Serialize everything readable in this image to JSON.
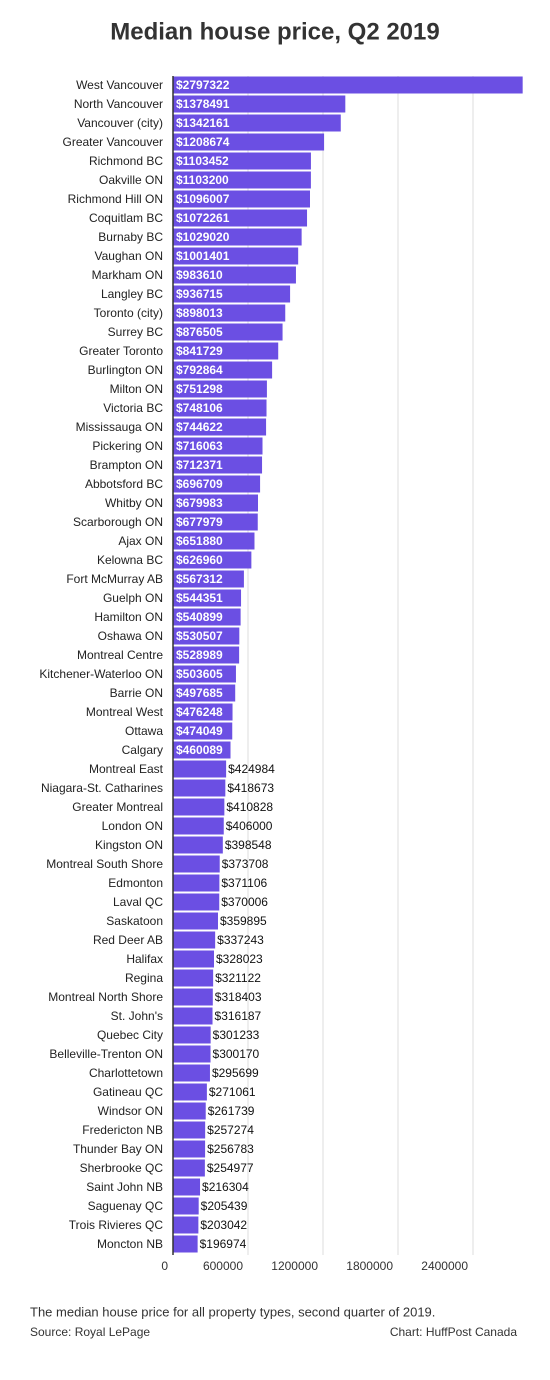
{
  "chart_data": {
    "type": "bar",
    "orientation": "horizontal",
    "title": "Median house price, Q2 2019",
    "categories": [
      "West Vancouver",
      "North Vancouver",
      "Vancouver (city)",
      "Greater Vancouver",
      "Richmond BC",
      "Oakville ON",
      "Richmond Hill ON",
      "Coquitlam BC",
      "Burnaby BC",
      "Vaughan ON",
      "Markham ON",
      "Langley BC",
      "Toronto (city)",
      "Surrey BC",
      "Greater Toronto",
      "Burlington ON",
      "Milton ON",
      "Victoria BC",
      "Mississauga ON",
      "Pickering ON",
      "Brampton ON",
      "Abbotsford BC",
      "Whitby ON",
      "Scarborough ON",
      "Ajax ON",
      "Kelowna BC",
      "Fort McMurray AB",
      "Guelph ON",
      "Hamilton ON",
      "Oshawa ON",
      "Montreal Centre",
      "Kitchener-Waterloo ON",
      "Barrie ON",
      "Montreal West",
      "Ottawa",
      "Calgary",
      "Montreal East",
      "Niagara-St. Catharines",
      "Greater Montreal",
      "London ON",
      "Kingston ON",
      "Montreal South Shore",
      "Edmonton",
      "Laval QC",
      "Saskatoon",
      "Red Deer AB",
      "Halifax",
      "Regina",
      "Montreal North Shore",
      "St. John's",
      "Quebec City",
      "Belleville-Trenton ON",
      "Charlottetown",
      "Gatineau QC",
      "Windsor ON",
      "Fredericton NB",
      "Thunder Bay ON",
      "Sherbrooke QC",
      "Saint John NB",
      "Saguenay QC",
      "Trois Rivieres QC",
      "Moncton NB"
    ],
    "values": [
      2797322,
      1378491,
      1342161,
      1208674,
      1103452,
      1103200,
      1096007,
      1072261,
      1029020,
      1001401,
      983610,
      936715,
      898013,
      876505,
      841729,
      792864,
      751298,
      748106,
      744622,
      716063,
      712371,
      696709,
      679983,
      677979,
      651880,
      626960,
      567312,
      544351,
      540899,
      530507,
      528989,
      503605,
      497685,
      476248,
      474049,
      460089,
      424984,
      418673,
      410828,
      406000,
      398548,
      373708,
      371106,
      370006,
      359895,
      337243,
      328023,
      321122,
      318403,
      316187,
      301233,
      300170,
      295699,
      271061,
      261739,
      257274,
      256783,
      254977,
      216304,
      205439,
      203042,
      196974
    ],
    "value_labels": [
      "$2797322",
      "$1378491",
      "$1342161",
      "$1208674",
      "$1103452",
      "$1103200",
      "$1096007",
      "$1072261",
      "$1029020",
      "$1001401",
      "$983610",
      "$936715",
      "$898013",
      "$876505",
      "$841729",
      "$792864",
      "$751298",
      "$748106",
      "$744622",
      "$716063",
      "$712371",
      "$696709",
      "$679983",
      "$677979",
      "$651880",
      "$626960",
      "$567312",
      "$544351",
      "$540899",
      "$530507",
      "$528989",
      "$503605",
      "$497685",
      "$476248",
      "$474049",
      "$460089",
      "$424984",
      "$418673",
      "$410828",
      "$406000",
      "$398548",
      "$373708",
      "$371106",
      "$370006",
      "$359895",
      "$337243",
      "$328023",
      "$321122",
      "$318403",
      "$316187",
      "$301233",
      "$300170",
      "$295699",
      "$271061",
      "$261739",
      "$257274",
      "$256783",
      "$254977",
      "$216304",
      "$205439",
      "$203042",
      "$196974"
    ],
    "color": "#6b4fe3",
    "xlim": [
      0,
      2800000
    ],
    "xticks": [
      0,
      600000,
      1200000,
      1800000,
      2400000
    ],
    "grid": true,
    "note": "The median house price for all property types, second quarter of 2019.",
    "source": "Source: Royal LePage",
    "credit": "Chart: HuffPost Canada"
  }
}
